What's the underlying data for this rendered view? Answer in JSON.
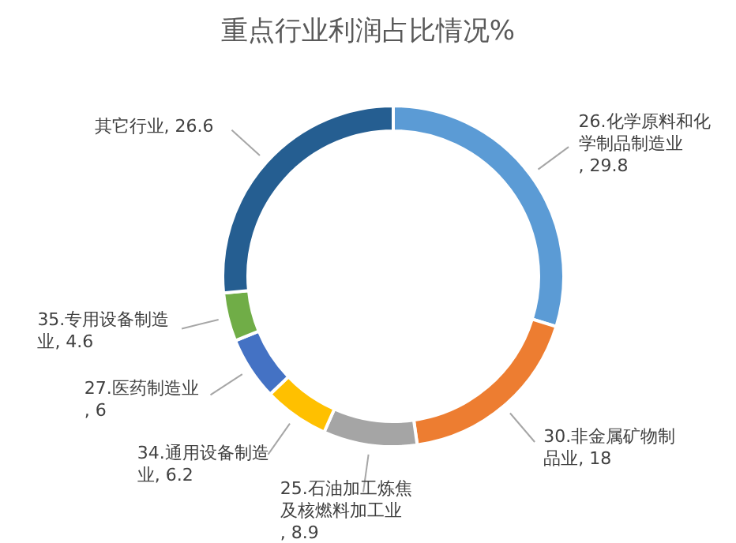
{
  "chart_data": {
    "type": "donut",
    "title": "重点行业利润占比情况%",
    "categories": [
      "26.化学原料和化学制品制造业",
      "30.非金属矿物制品业",
      "25.石油加工炼焦及核燃料加工业",
      "34.通用设备制造业",
      "27.医药制造业",
      "35.专用设备制造业",
      "其它行业"
    ],
    "values": [
      29.8,
      18,
      8.9,
      6.2,
      6,
      4.6,
      26.6
    ],
    "value_labels": [
      ", 29.8",
      ", 18",
      ", 8.9",
      ", 6.2",
      ", 6",
      ", 4.6",
      ", 26.6"
    ],
    "colors": [
      "#5b9bd5",
      "#ed7d31",
      "#a5a5a5",
      "#ffc000",
      "#4472c4",
      "#70ad47",
      "#255e91"
    ],
    "legend": false
  }
}
